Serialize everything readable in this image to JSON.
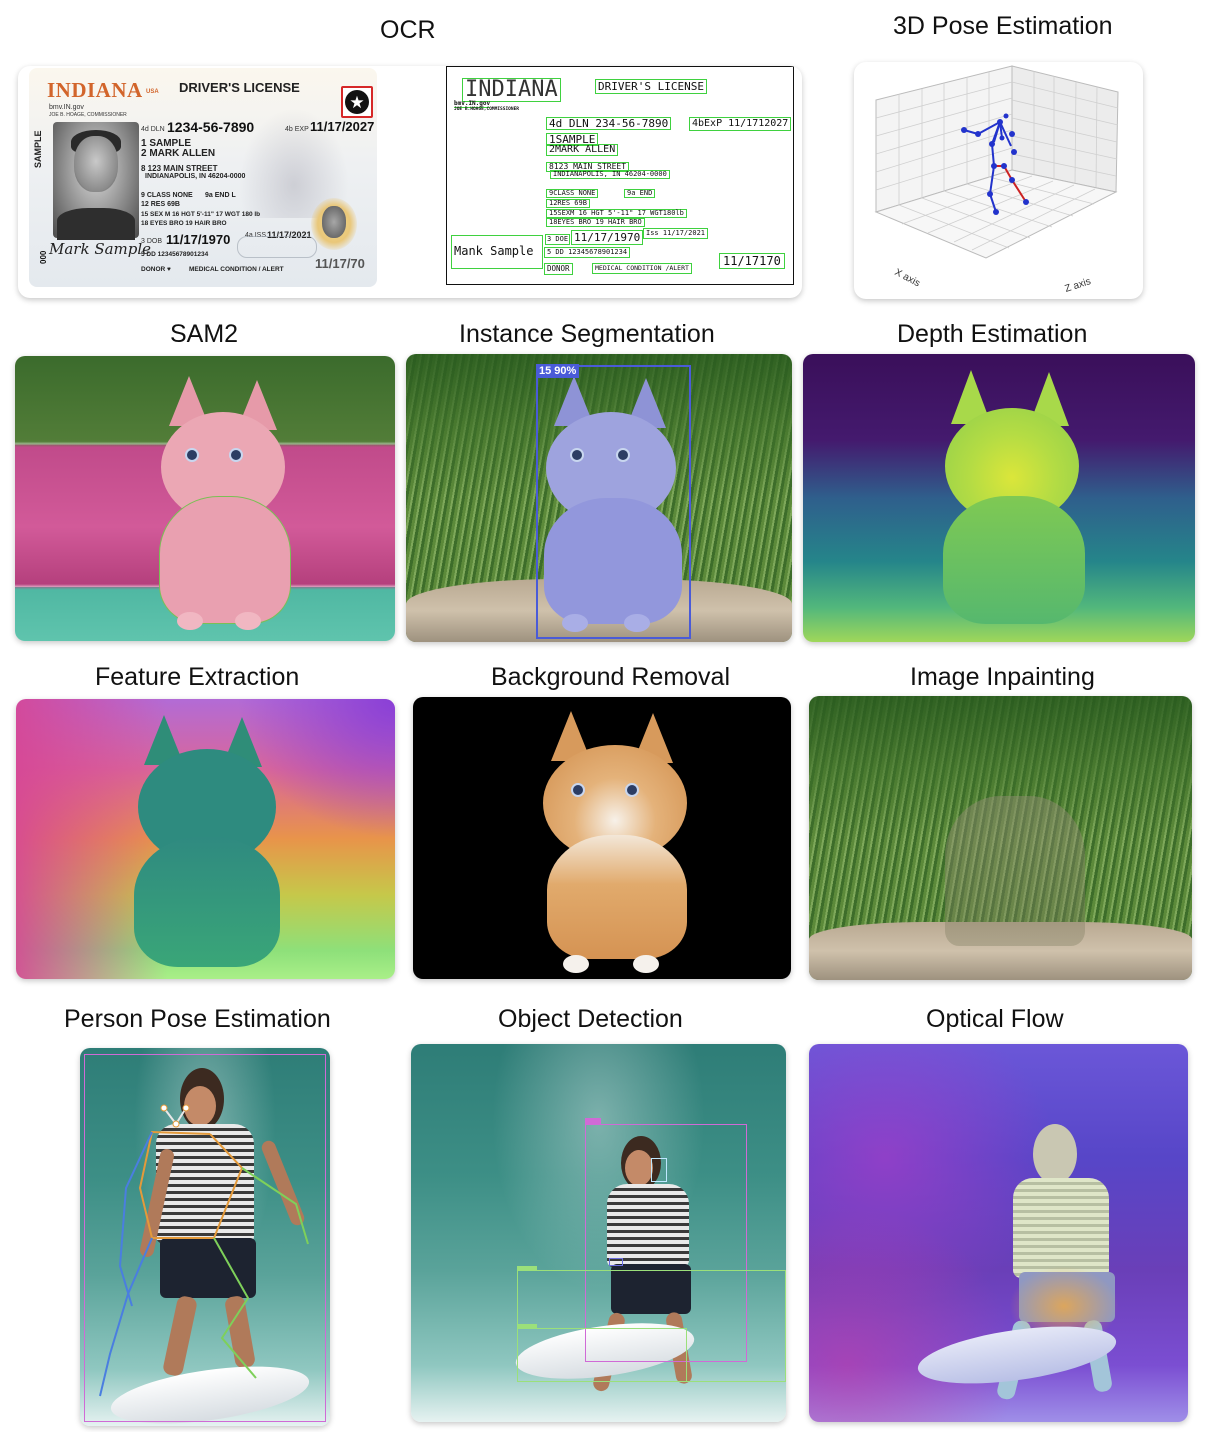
{
  "titles": {
    "ocr": "OCR",
    "pose3d": "3D Pose Estimation",
    "sam2": "SAM2",
    "instance": "Instance Segmentation",
    "depth": "Depth Estimation",
    "feature": "Feature Extraction",
    "bg_removal": "Background Removal",
    "inpainting": "Image Inpainting",
    "person_pose": "Person Pose Estimation",
    "object_detection": "Object Detection",
    "optical_flow": "Optical Flow"
  },
  "license": {
    "state": "INDIANA",
    "usa": "USA",
    "title": "DRIVER'S LICENSE",
    "website": "bmv.IN.gov",
    "commissioner": "JOE B. HOAGE, COMMISSIONER",
    "dln_label": "4d DLN",
    "dln": "1234-56-7890",
    "exp_label": "4b EXP",
    "exp": "11/17/2027",
    "last_name": "1 SAMPLE",
    "first_name": "2 MARK ALLEN",
    "street": "8 123 MAIN STREET",
    "city": "INDIANAPOLIS, IN 46204-0000",
    "class": "9 CLASS NONE",
    "end": "9a END L",
    "res": "12 RES 69B",
    "sex_line": "15 SEX M   16 HGT 5'-11\"   17 WGT 180 lb",
    "eyes_line": "18 EYES BRO   19 HAIR BRO",
    "dob_label": "3 DOB",
    "dob": "11/17/1970",
    "iss_label": "4a ISS",
    "iss": "11/17/2021",
    "dd": "5 DD 12345678901234",
    "donor": "DONOR ♥",
    "medical": "MEDICAL CONDITION / ALERT",
    "dob_short": "11/17/70",
    "vertical": "SAMPLE",
    "rot": "000",
    "signature": "Mark Sample"
  },
  "ocr_output": {
    "state": "INDIANA",
    "title": "DRIVER'S LICENSE",
    "website": "bmv.IN.gov",
    "commissioner": "JOE B.HOAGE,COMMISSIONER",
    "dln": "4d DLN 234-56-7890",
    "exp": "4bExP 11/1712027",
    "last_name": "1SAMPLE",
    "first_name": "2MARK ALLEN",
    "street": "8123 MAIN STREET",
    "city": "INDIANAPOLIS, IN 46204-0000",
    "class": "9CLASS NONE",
    "end": "9a END",
    "res": "12RES 69B",
    "sex_line": "15SEXM 16 HGT 5'-11\" 17 WGT180lb",
    "eyes_line": "18EYES BRO 19 HAIR BRO",
    "dob_label": "3 DOE",
    "dob": "11/17/1970",
    "iss": "Iss 11/17/2021",
    "dd": "5 DD 12345678901234",
    "donor": "DONOR",
    "medical": "MEDICAL CONDITION /ALERT",
    "signature": "Mank Sample",
    "dob_short": "11/17170"
  },
  "pose3d": {
    "x_label": "X axis",
    "z_label": "Z axis"
  },
  "instance": {
    "tag": "15 90%"
  },
  "colors": {
    "ocr_box": "#3fd13f",
    "instance_box": "#4a5bd8",
    "pose_magenta": "#d06ad6",
    "detect_green": "#9be07a",
    "flow_purple": "#6a4fe0"
  }
}
